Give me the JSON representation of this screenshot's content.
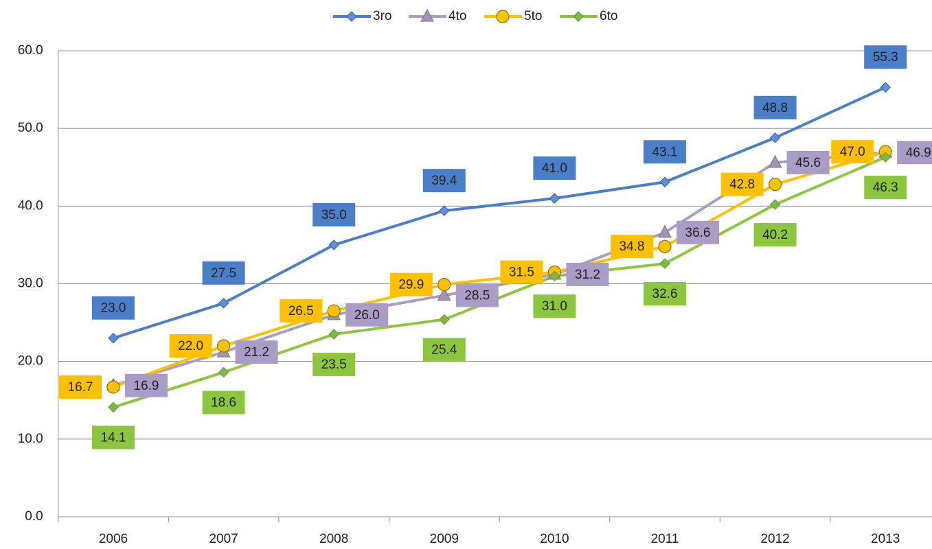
{
  "chart_data": {
    "type": "line",
    "categories": [
      "2006",
      "2007",
      "2008",
      "2009",
      "2010",
      "2011",
      "2012",
      "2013"
    ],
    "series": [
      {
        "name": "3ro",
        "color": "#4a7ec8",
        "marker": "diamond",
        "values": [
          23.0,
          27.5,
          35.0,
          39.4,
          41.0,
          43.1,
          48.8,
          55.3
        ],
        "value_labels": [
          "23.0",
          "27.5",
          "35.0",
          "39.4",
          "41.0",
          "43.1",
          "48.8",
          "55.3"
        ]
      },
      {
        "name": "4to",
        "color": "#a99cc6",
        "marker": "triangle",
        "values": [
          16.9,
          21.2,
          26.0,
          28.5,
          31.2,
          36.6,
          45.6,
          46.9
        ],
        "value_labels": [
          "16.9",
          "21.2",
          "26.0",
          "28.5",
          "31.2",
          "36.6",
          "45.6",
          "46.9"
        ]
      },
      {
        "name": "5to",
        "color": "#ffc000",
        "marker": "circle",
        "values": [
          16.7,
          22.0,
          26.5,
          29.9,
          31.5,
          34.8,
          42.8,
          47.0
        ],
        "value_labels": [
          "16.7",
          "22.0",
          "26.5",
          "29.9",
          "31.5",
          "34.8",
          "42.8",
          "47.0"
        ]
      },
      {
        "name": "6to",
        "color": "#8cc63f",
        "marker": "diamond",
        "values": [
          14.1,
          18.6,
          23.5,
          25.4,
          31.0,
          32.6,
          40.2,
          46.3
        ],
        "value_labels": [
          "14.1",
          "18.6",
          "23.5",
          "25.4",
          "31.0",
          "32.6",
          "40.2",
          "46.3"
        ]
      }
    ],
    "ylim": [
      0,
      60
    ],
    "yticks": [
      {
        "value": 0,
        "label": "0.0"
      },
      {
        "value": 10,
        "label": "10.0"
      },
      {
        "value": 20,
        "label": "20.0"
      },
      {
        "value": 30,
        "label": "30.0"
      },
      {
        "value": 40,
        "label": "40.0"
      },
      {
        "value": 50,
        "label": "50.0"
      },
      {
        "value": 60,
        "label": "60.0"
      }
    ],
    "grid": true,
    "legend": "top"
  }
}
